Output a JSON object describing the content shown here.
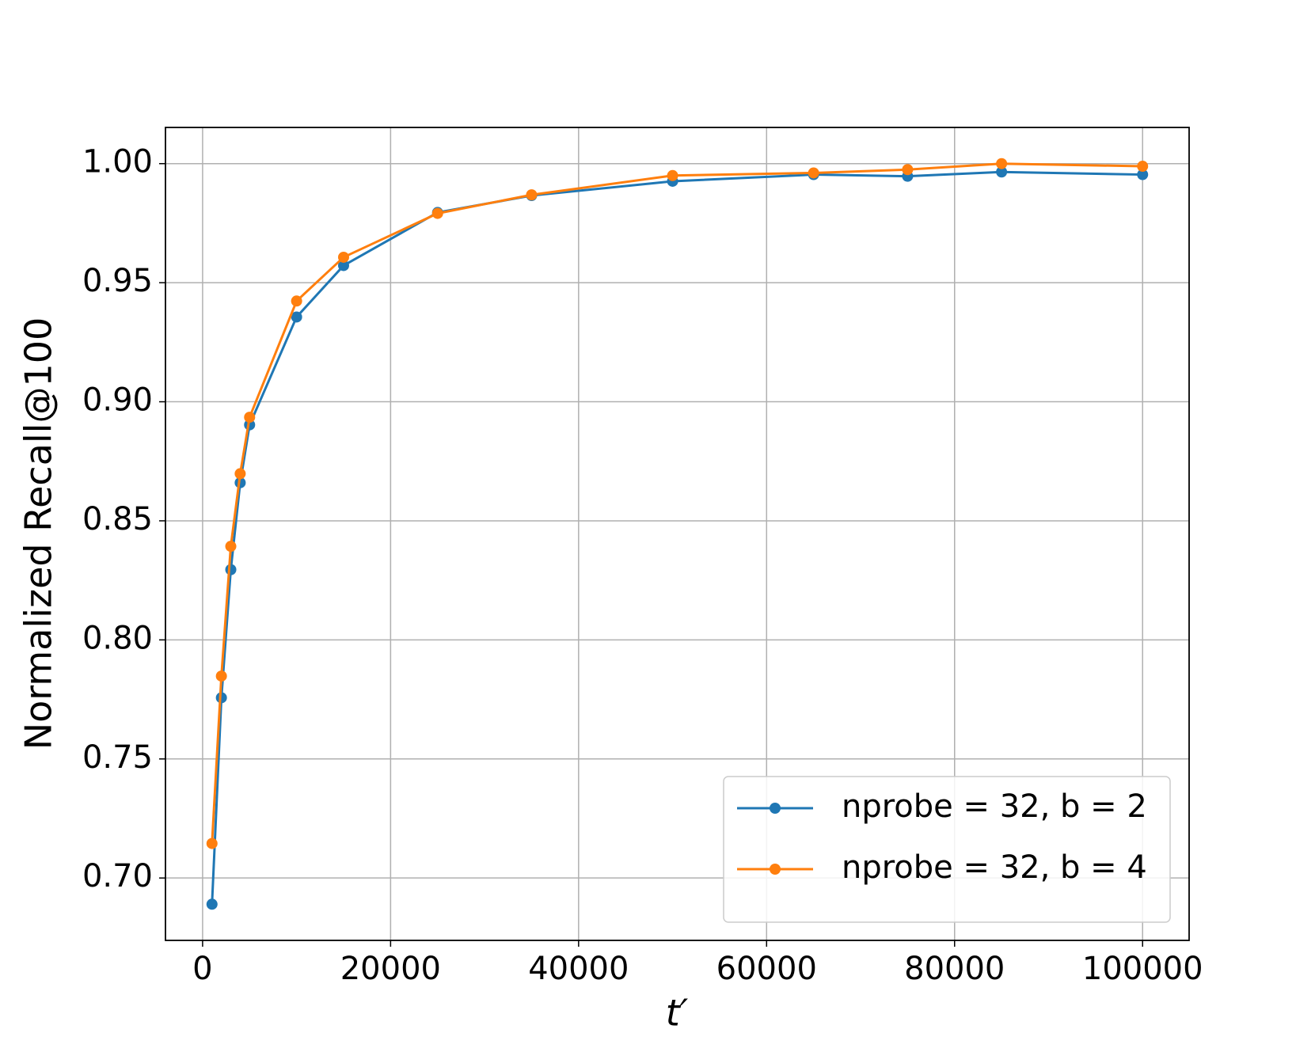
{
  "chart_data": {
    "type": "line",
    "xlabel": "t′",
    "ylabel": "Normalized Recall@100",
    "x": [
      1000,
      2000,
      3000,
      4000,
      5000,
      10000,
      15000,
      25000,
      35000,
      50000,
      65000,
      75000,
      85000,
      100000
    ],
    "series": [
      {
        "name": "nprobe = 32, b = 2",
        "color": "#1f77b4",
        "values": [
          0.689,
          0.7757,
          0.8295,
          0.866,
          0.8903,
          0.9356,
          0.9572,
          0.9795,
          0.9866,
          0.9926,
          0.9954,
          0.9947,
          0.9965,
          0.9954
        ]
      },
      {
        "name": "nprobe = 32, b = 4",
        "color": "#ff7f0e",
        "values": [
          0.7145,
          0.7848,
          0.8393,
          0.8698,
          0.8935,
          0.9423,
          0.9607,
          0.9791,
          0.9869,
          0.995,
          0.9961,
          0.9975,
          1.0,
          0.9989
        ]
      }
    ],
    "xlim": [
      -3950,
      104950
    ],
    "ylim": [
      0.6738,
      1.0152
    ],
    "xticks": [
      0,
      20000,
      40000,
      60000,
      80000,
      100000
    ],
    "yticks": [
      {
        "value": 0.7,
        "label": "0.70"
      },
      {
        "value": 0.75,
        "label": "0.75"
      },
      {
        "value": 0.8,
        "label": "0.80"
      },
      {
        "value": 0.85,
        "label": "0.85"
      },
      {
        "value": 0.9,
        "label": "0.90"
      },
      {
        "value": 0.95,
        "label": "0.95"
      },
      {
        "value": 1.0,
        "label": "1.00"
      }
    ],
    "grid": true,
    "legend": "lower right"
  }
}
